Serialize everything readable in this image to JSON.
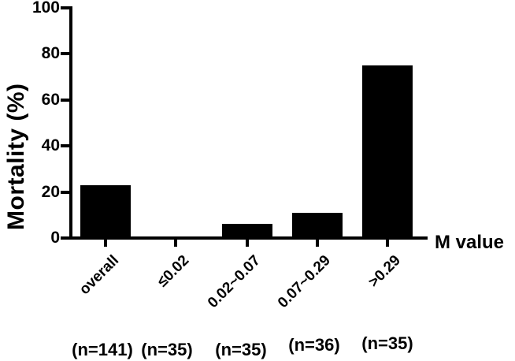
{
  "figure": {
    "background": "#ffffff",
    "axis_color": "#000000"
  },
  "chart_data": {
    "type": "bar",
    "title": "",
    "xlabel": "M value",
    "ylabel": "Mortality (%)",
    "ylim": [
      0,
      100
    ],
    "yticks": [
      0,
      20,
      40,
      60,
      80,
      100
    ],
    "categories": [
      "overall",
      "≤0.02",
      "0.02~0.07",
      "0.07~0.29",
      ">0.29"
    ],
    "values": [
      23,
      0,
      6,
      11,
      75
    ],
    "group_sizes": [
      "(n=141)",
      "(n=35)",
      "(n=35)",
      "(n=36)",
      "(n=35)"
    ],
    "bar_color": "#000000",
    "grid": false,
    "legend": null
  }
}
